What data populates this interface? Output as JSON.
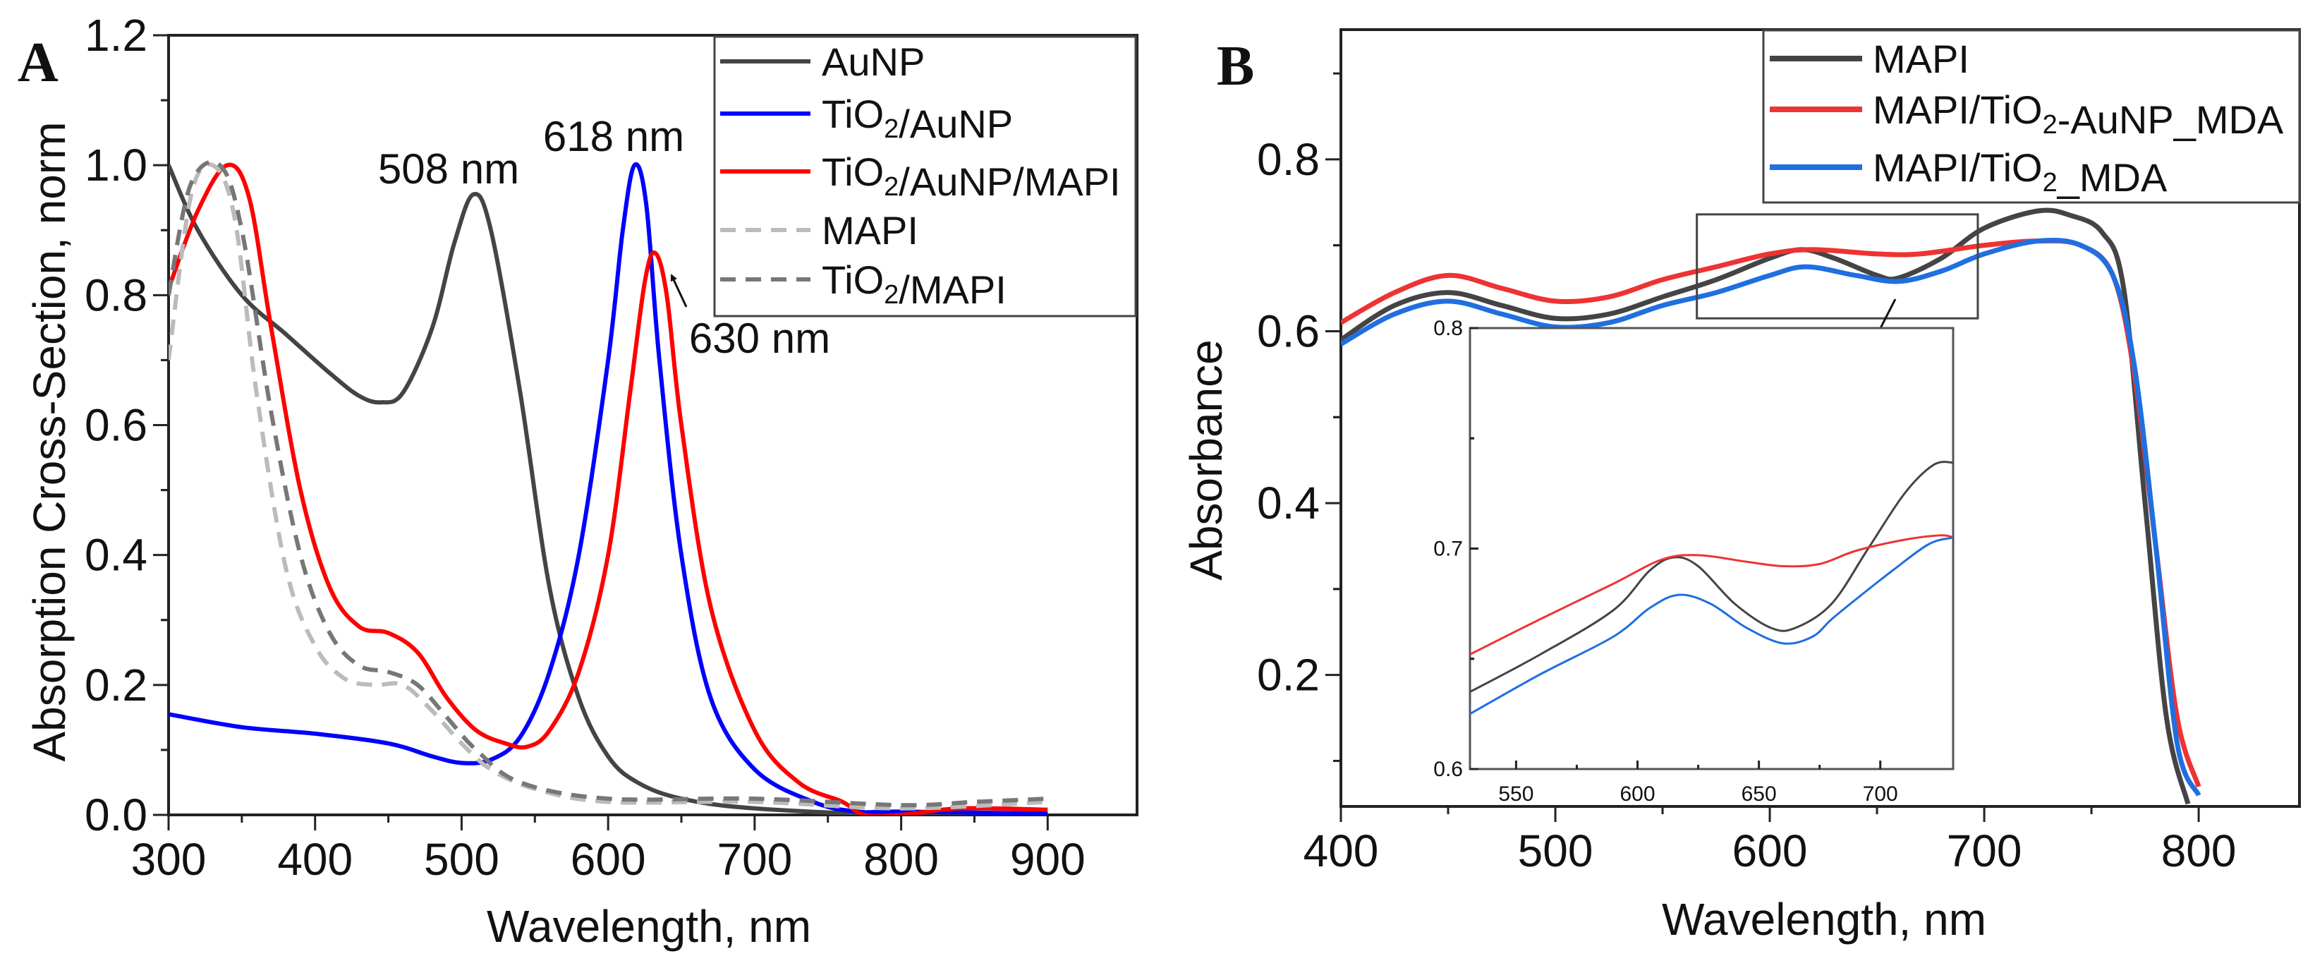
{
  "colors": {
    "dark": "#444444",
    "blue_a": "#0000ff",
    "red_a": "#ff0000",
    "light_gray": "#bbbbbb",
    "mid_gray": "#777777",
    "red_b": "#ee3333",
    "blue_b": "#1f6fe0"
  },
  "chart_data": [
    {
      "panel": "A",
      "type": "line",
      "xlabel": "Wavelength, nm",
      "ylabel": "Absorption Cross-Section, norm",
      "xlim": [
        300,
        961
      ],
      "ylim": [
        0,
        1.2
      ],
      "xticks": [
        300,
        400,
        500,
        600,
        700,
        800,
        900
      ],
      "yticks": [
        0.0,
        0.2,
        0.4,
        0.6,
        0.8,
        1.0,
        1.2
      ],
      "ytick_labels": [
        "0.0",
        "0.2",
        "0.4",
        "0.6",
        "0.8",
        "1.0",
        "1.2"
      ],
      "legend": "top-right",
      "annotations": [
        {
          "text": "508 nm",
          "x": 508,
          "y": 0.955
        },
        {
          "text": "618 nm",
          "x": 618,
          "y": 1.0
        },
        {
          "text": "630 nm",
          "x": 632,
          "y": 0.865
        }
      ],
      "series": [
        {
          "name": "AuNP",
          "color": "#444444",
          "dash": false,
          "x": [
            300,
            320,
            350,
            380,
            410,
            430,
            445,
            460,
            480,
            495,
            508,
            520,
            540,
            560,
            580,
            600,
            620,
            650,
            700,
            800,
            900
          ],
          "y": [
            1.0,
            0.9,
            0.8,
            0.74,
            0.68,
            0.645,
            0.635,
            0.65,
            0.75,
            0.88,
            0.955,
            0.9,
            0.65,
            0.35,
            0.18,
            0.09,
            0.05,
            0.025,
            0.01,
            0.0,
            0.0
          ]
        },
        {
          "name": "TiO₂/AuNP",
          "color": "#0000ff",
          "dash": false,
          "x": [
            300,
            350,
            400,
            450,
            480,
            500,
            520,
            540,
            560,
            580,
            600,
            610,
            618,
            626,
            635,
            650,
            670,
            700,
            740,
            770,
            800,
            900
          ],
          "y": [
            0.155,
            0.135,
            0.125,
            0.11,
            0.09,
            0.08,
            0.085,
            0.12,
            0.22,
            0.4,
            0.7,
            0.9,
            1.0,
            0.94,
            0.7,
            0.4,
            0.18,
            0.07,
            0.02,
            0.005,
            0.005,
            0.002
          ]
        },
        {
          "name": "TiO₂/AuNP/MAPI",
          "color": "#ff0000",
          "dash": false,
          "x": [
            300,
            320,
            340,
            355,
            370,
            390,
            410,
            430,
            450,
            470,
            490,
            510,
            530,
            545,
            560,
            580,
            600,
            615,
            625,
            632,
            640,
            650,
            670,
            700,
            730,
            760,
            775,
            800,
            840,
            900
          ],
          "y": [
            0.81,
            0.93,
            1.0,
            0.95,
            0.75,
            0.5,
            0.35,
            0.29,
            0.28,
            0.25,
            0.18,
            0.13,
            0.11,
            0.105,
            0.13,
            0.22,
            0.4,
            0.65,
            0.82,
            0.865,
            0.8,
            0.6,
            0.32,
            0.13,
            0.05,
            0.02,
            0.0,
            0.0,
            0.01,
            0.008
          ]
        },
        {
          "name": "MAPI",
          "color": "#bbbbbb",
          "dash": true,
          "x": [
            300,
            315,
            330,
            345,
            360,
            380,
            400,
            420,
            440,
            460,
            480,
            500,
            520,
            550,
            600,
            700,
            800,
            900
          ],
          "y": [
            0.7,
            0.95,
            1.0,
            0.92,
            0.65,
            0.38,
            0.26,
            0.21,
            0.2,
            0.2,
            0.16,
            0.11,
            0.07,
            0.04,
            0.02,
            0.02,
            0.01,
            0.02
          ]
        },
        {
          "name": "TiO₂/MAPI",
          "color": "#777777",
          "dash": true,
          "x": [
            300,
            315,
            335,
            350,
            370,
            390,
            410,
            430,
            450,
            470,
            490,
            510,
            540,
            600,
            700,
            800,
            850,
            900
          ],
          "y": [
            0.8,
            0.97,
            1.0,
            0.9,
            0.62,
            0.4,
            0.28,
            0.23,
            0.22,
            0.2,
            0.15,
            0.1,
            0.05,
            0.025,
            0.025,
            0.015,
            0.02,
            0.025
          ]
        }
      ]
    },
    {
      "panel": "B",
      "type": "line",
      "xlabel": "Wavelength, nm",
      "ylabel": "Absorbance",
      "xlim": [
        400,
        847
      ],
      "ylim": [
        0.047,
        0.951
      ],
      "xticks": [
        400,
        500,
        600,
        700,
        800
      ],
      "yticks": [
        0.2,
        0.4,
        0.6,
        0.8
      ],
      "ytick_labels": [
        "0.2",
        "0.4",
        "0.6",
        "0.8"
      ],
      "legend": "top-right",
      "zoom_region": {
        "x": [
          566,
          697
        ],
        "y": [
          0.615,
          0.736
        ]
      },
      "series": [
        {
          "name": "MAPI",
          "color": "#444444",
          "x": [
            400,
            425,
            450,
            475,
            500,
            525,
            550,
            575,
            600,
            615,
            630,
            650,
            660,
            680,
            700,
            725,
            740,
            755,
            765,
            775,
            785,
            795
          ],
          "y": [
            0.59,
            0.63,
            0.645,
            0.63,
            0.615,
            0.62,
            0.64,
            0.66,
            0.685,
            0.695,
            0.685,
            0.665,
            0.662,
            0.685,
            0.72,
            0.74,
            0.735,
            0.715,
            0.65,
            0.4,
            0.15,
            0.05
          ]
        },
        {
          "name": "MAPI/TiO₂-AuNP_MDA",
          "color": "#ee3333",
          "x": [
            400,
            425,
            450,
            475,
            500,
            525,
            550,
            575,
            600,
            620,
            650,
            670,
            700,
            725,
            745,
            760,
            770,
            780,
            790,
            800
          ],
          "y": [
            0.61,
            0.645,
            0.665,
            0.65,
            0.635,
            0.64,
            0.66,
            0.675,
            0.69,
            0.695,
            0.69,
            0.69,
            0.7,
            0.705,
            0.7,
            0.665,
            0.55,
            0.35,
            0.15,
            0.07
          ]
        },
        {
          "name": "MAPI/TiO₂_MDA",
          "color": "#1f6fe0",
          "x": [
            400,
            425,
            450,
            475,
            500,
            525,
            550,
            575,
            600,
            617,
            640,
            660,
            680,
            700,
            725,
            745,
            760,
            770,
            780,
            790,
            800
          ],
          "y": [
            0.585,
            0.62,
            0.635,
            0.62,
            0.605,
            0.61,
            0.63,
            0.645,
            0.665,
            0.675,
            0.665,
            0.658,
            0.67,
            0.69,
            0.705,
            0.7,
            0.665,
            0.56,
            0.35,
            0.12,
            0.06
          ]
        }
      ],
      "inset": {
        "xlim": [
          531,
          730
        ],
        "ylim": [
          0.6,
          0.8
        ],
        "xticks": [
          550,
          600,
          650,
          700
        ],
        "yticks": [
          0.6,
          0.7,
          0.8
        ],
        "ytick_labels": [
          "0.6",
          "0.7",
          "0.8"
        ],
        "series": [
          {
            "name": "MAPI",
            "color": "#444444",
            "x": [
              531,
              560,
              590,
              605,
              615,
              625,
              640,
              655,
              665,
              680,
              695,
              710,
              722,
              730
            ],
            "y": [
              0.635,
              0.652,
              0.672,
              0.69,
              0.696,
              0.692,
              0.675,
              0.664,
              0.664,
              0.675,
              0.7,
              0.725,
              0.738,
              0.739
            ]
          },
          {
            "name": "MAPI/TiO₂-AuNP_MDA",
            "color": "#ee3333",
            "x": [
              531,
              560,
              590,
              610,
              625,
              645,
              660,
              675,
              690,
              710,
              725,
              730
            ],
            "y": [
              0.652,
              0.668,
              0.684,
              0.695,
              0.697,
              0.694,
              0.692,
              0.693,
              0.699,
              0.704,
              0.706,
              0.705
            ]
          },
          {
            "name": "MAPI/TiO₂_MDA",
            "color": "#1f6fe0",
            "x": [
              531,
              560,
              590,
              605,
              617,
              630,
              645,
              660,
              672,
              680,
              690,
              705,
              720,
              730
            ],
            "y": [
              0.625,
              0.643,
              0.66,
              0.673,
              0.679,
              0.675,
              0.664,
              0.657,
              0.66,
              0.668,
              0.677,
              0.69,
              0.702,
              0.705
            ]
          }
        ]
      }
    }
  ]
}
